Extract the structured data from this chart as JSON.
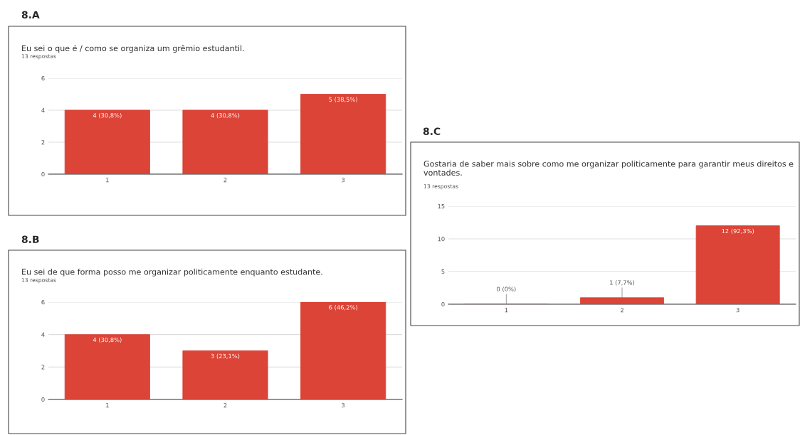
{
  "chart_data": [
    {
      "type": "bar",
      "annotations": [
        "8.A"
      ],
      "title": "Eu sei o que é / como se organiza um grêmio estudantil.",
      "subtitle": "13 respostas",
      "categories": [
        "1",
        "2",
        "3"
      ],
      "values": [
        4,
        4,
        5
      ],
      "color": "#db4437",
      "value_labels": [
        "4 (30,8%)",
        "4 (30,8%)",
        "5 (38,5%)"
      ],
      "ylim": [
        0,
        6
      ],
      "yticks": [
        0,
        2,
        4,
        6
      ],
      "grid": "y"
    },
    {
      "type": "bar",
      "annotations": [
        "8.B"
      ],
      "title": "Eu sei de que forma posso me organizar politicamente enquanto estudante.",
      "subtitle": "13 respostas",
      "categories": [
        "1",
        "2",
        "3"
      ],
      "values": [
        4,
        3,
        6
      ],
      "color": "#db4437",
      "value_labels": [
        "4 (30,8%)",
        "3 (23,1%)",
        "6 (46,2%)"
      ],
      "ylim": [
        0,
        6
      ],
      "yticks": [
        0,
        2,
        4,
        6
      ],
      "grid": "y"
    },
    {
      "type": "bar",
      "annotations": [
        "8.C"
      ],
      "title": "Gostaria de saber mais sobre como me organizar politicamente para garantir meus direitos e vontades.",
      "subtitle": "13 respostas",
      "categories": [
        "1",
        "2",
        "3"
      ],
      "values": [
        0,
        1,
        12
      ],
      "color": "#db4437",
      "value_labels": [
        "0 (0%)",
        "1 (7,7%)",
        "12 (92,3%)"
      ],
      "ylim": [
        0,
        15
      ],
      "yticks": [
        0,
        5,
        10,
        15
      ],
      "grid": "y"
    }
  ]
}
